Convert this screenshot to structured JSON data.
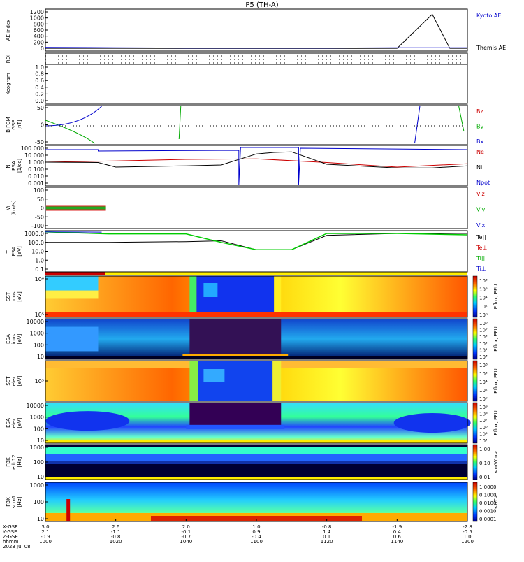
{
  "title": "P5 (TH-A)",
  "panels": [
    {
      "id": "ae",
      "ylabel": [
        "AE index"
      ],
      "yticks": [
        "1200",
        "1000",
        "800",
        "600",
        "400",
        "200",
        "0"
      ],
      "legend": [
        {
          "text": "Kyoto AE",
          "color": "#0000cc"
        },
        {
          "text": "Themis AE",
          "color": "#000000"
        }
      ]
    },
    {
      "id": "roi",
      "ylabel": [
        "ROI"
      ],
      "yticks": [],
      "legend": []
    },
    {
      "id": "kp",
      "ylabel": [
        "Keogram"
      ],
      "yticks": [
        "1.0",
        "0.8",
        "0.6",
        "0.4",
        "0.2",
        "0.0"
      ],
      "legend": []
    },
    {
      "id": "bfgm",
      "ylabel": [
        "B FGM",
        "GSE",
        "[nT]"
      ],
      "yticks": [
        "50",
        "0",
        "-50"
      ],
      "legend": [
        {
          "text": "Bz",
          "color": "#cc0000"
        },
        {
          "text": "By",
          "color": "#00aa00"
        },
        {
          "text": "Bx",
          "color": "#0000cc"
        }
      ]
    },
    {
      "id": "ni",
      "ylabel": [
        "Ni",
        "ESA",
        "[1/cc]"
      ],
      "yticks": [
        "100.000",
        "10.000",
        "1.000",
        "0.100",
        "0.010",
        "0.001"
      ],
      "legend": [
        {
          "text": "Ne",
          "color": "#cc0000"
        },
        {
          "text": "Ni",
          "color": "#000000"
        },
        {
          "text": "Npot",
          "color": "#0000cc"
        }
      ]
    },
    {
      "id": "vi",
      "ylabel": [
        "Vi",
        "[km/s]"
      ],
      "yticks": [
        "100",
        "50",
        "0",
        "-50",
        "-100"
      ],
      "legend": [
        {
          "text": "Viz",
          "color": "#cc0000"
        },
        {
          "text": "Viy",
          "color": "#00aa00"
        },
        {
          "text": "Vix",
          "color": "#0000cc"
        }
      ]
    },
    {
      "id": "ti",
      "ylabel": [
        "Ti",
        "ESA",
        "[eV]"
      ],
      "yticks": [
        "1000.0",
        "100.0",
        "10.0",
        "1.0",
        "0.1"
      ],
      "legend": [
        {
          "text": "Te||",
          "color": "#000000"
        },
        {
          "text": "Te⊥",
          "color": "#cc0000"
        },
        {
          "text": "Ti||",
          "color": "#00aa00"
        },
        {
          "text": "Ti⊥",
          "color": "#0000cc"
        }
      ]
    },
    {
      "id": "sst_i",
      "ylabel": [
        "SST",
        "ions",
        "[eV]"
      ],
      "yticks": [
        "10⁶",
        "10⁵"
      ],
      "cbar": {
        "label": "Eflux, EFU",
        "ticks": [
          "10⁸",
          "10⁶",
          "10⁴",
          "10²",
          "10⁰"
        ]
      }
    },
    {
      "id": "esa_i",
      "ylabel": [
        "ESA",
        "ions",
        "[eV]"
      ],
      "yticks": [
        "10000",
        "1000",
        "100",
        "10"
      ],
      "cbar": {
        "label": "Eflux, EFU",
        "ticks": [
          "10⁸",
          "10⁷",
          "10⁶",
          "10⁵",
          "10⁴",
          "10³"
        ]
      }
    },
    {
      "id": "sst_e",
      "ylabel": [
        "SST",
        "elec",
        "[eV]"
      ],
      "yticks": [
        "10⁵"
      ],
      "cbar": {
        "label": "Eflux, EFU",
        "ticks": [
          "10⁸",
          "10⁶",
          "10⁴",
          "10²",
          "10⁰"
        ]
      }
    },
    {
      "id": "esa_e",
      "ylabel": [
        "ESA",
        "elec",
        "[eV]"
      ],
      "yticks": [
        "10000",
        "1000",
        "100",
        "10"
      ],
      "cbar": {
        "label": "Eflux, EFU",
        "ticks": [
          "10⁹",
          "10⁸",
          "10⁷",
          "10⁶",
          "10⁵",
          "10⁴"
        ]
      }
    },
    {
      "id": "fbk_e",
      "ylabel": [
        "FBK",
        "edc12",
        "[Hz]"
      ],
      "yticks": [
        "1000",
        "100",
        "10"
      ],
      "cbar": {
        "label": "<mV/m>",
        "ticks": [
          "1.00",
          "0.10",
          "0.01"
        ]
      }
    },
    {
      "id": "fbk_b",
      "ylabel": [
        "FBK",
        "scm1",
        "[Hz]"
      ],
      "yticks": [
        "1000",
        "100",
        "10"
      ],
      "cbar": {
        "label": "<nT>",
        "ticks": [
          "1.0000",
          "0.1000",
          "0.0100",
          "0.0010",
          "0.0001"
        ]
      }
    }
  ],
  "xaxis": {
    "row_labels": [
      "X-GSE",
      "Y-GSE",
      "Z-GSE",
      "hhmm",
      "2023 Jul 08"
    ],
    "columns": [
      {
        "values": [
          "3.0",
          "2.1",
          "-0.9",
          "1000"
        ]
      },
      {
        "values": [
          "2.6",
          "-1.1",
          "-0.8",
          "1020"
        ]
      },
      {
        "values": [
          "2.0",
          "-0.1",
          "-0.7",
          "1040"
        ]
      },
      {
        "values": [
          "1.0",
          "0.9",
          "-0.4",
          "1100"
        ]
      },
      {
        "values": [
          "-0.8",
          "1.4",
          "0.1",
          "1120"
        ]
      },
      {
        "values": [
          "-1.9",
          "0.4",
          "0.6",
          "1140"
        ]
      },
      {
        "values": [
          "-2.8",
          "-0.5",
          "1.0",
          "1200"
        ]
      }
    ]
  },
  "chart_data": {
    "type": "line",
    "title": "P5 (TH-A)",
    "x_time_labels": [
      "1000",
      "1020",
      "1040",
      "1100",
      "1120",
      "1140",
      "1200"
    ],
    "series": [
      {
        "name": "Kyoto AE",
        "x": [
          "1000",
          "1020",
          "1040",
          "1100",
          "1120",
          "1140",
          "1150",
          "1155",
          "1200"
        ],
        "values": [
          50,
          40,
          30,
          30,
          30,
          40,
          40,
          40,
          40
        ]
      },
      {
        "name": "Themis AE",
        "x": [
          "1000",
          "1020",
          "1040",
          "1100",
          "1120",
          "1140",
          "1150",
          "1155",
          "1200"
        ],
        "values": [
          20,
          20,
          15,
          15,
          15,
          20,
          1100,
          20,
          20
        ]
      },
      {
        "name": "Ni",
        "x": [
          "1000",
          "1015",
          "1020",
          "1040",
          "1050",
          "1100",
          "1105",
          "1110",
          "1120",
          "1140",
          "1150",
          "1200"
        ],
        "values": [
          1.0,
          0.9,
          0.2,
          0.3,
          0.4,
          15,
          25,
          30,
          0.5,
          0.15,
          0.15,
          0.3
        ]
      },
      {
        "name": "Ne",
        "x": [
          "1000",
          "1020",
          "1040",
          "1100",
          "1120",
          "1140",
          "1200"
        ],
        "values": [
          1.0,
          1.5,
          2.5,
          3.0,
          0.9,
          0.2,
          0.6
        ]
      },
      {
        "name": "Ti||",
        "x": [
          "1000",
          "1018",
          "1040",
          "1050",
          "1100",
          "1110",
          "1120",
          "1140",
          "1200"
        ],
        "values": [
          1500,
          900,
          900,
          100,
          15,
          15,
          1000,
          1000,
          700
        ]
      },
      {
        "name": "Te||",
        "x": [
          "1000",
          "1018",
          "1040",
          "1050",
          "1100",
          "1110",
          "1120",
          "1140",
          "1200"
        ],
        "values": [
          100,
          100,
          120,
          150,
          15,
          15,
          600,
          1000,
          1000
        ]
      }
    ],
    "ylim_ae": [
      0,
      1200
    ]
  }
}
